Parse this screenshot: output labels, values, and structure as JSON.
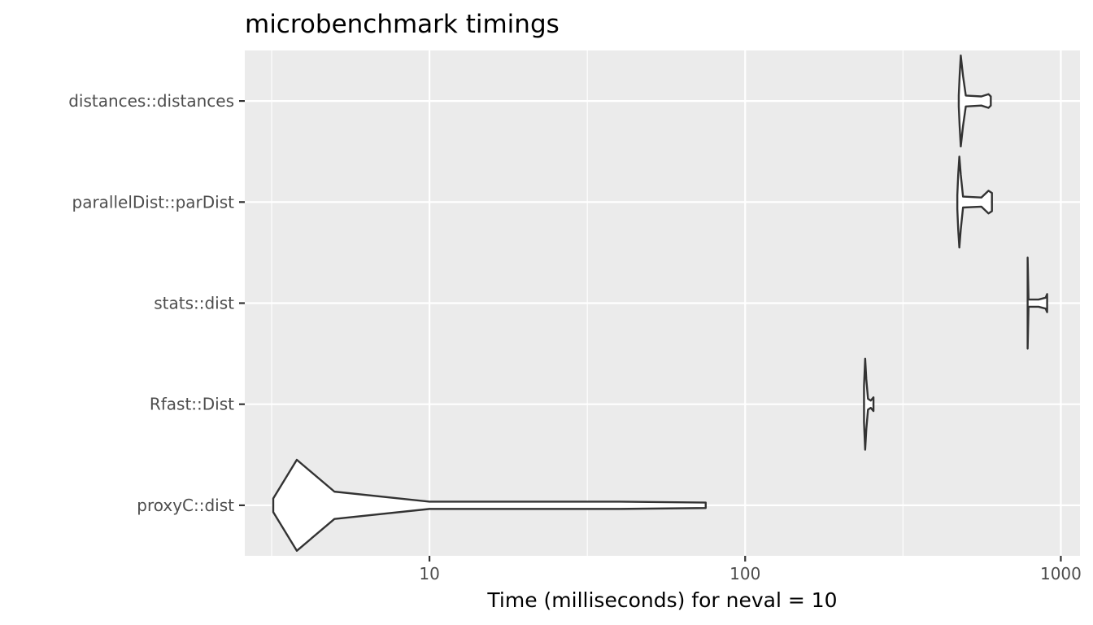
{
  "chart_data": {
    "type": "violin",
    "title": "microbenchmark timings",
    "xlabel": "Time (milliseconds) for neval = 10",
    "ylabel": "",
    "x_scale": "log10",
    "xlim": [
      2.6,
      1150
    ],
    "x_ticks": [
      10,
      100,
      1000
    ],
    "x_tick_labels": [
      "10",
      "100",
      "1000"
    ],
    "grid": true,
    "legend": "none",
    "categories": [
      "distances::distances",
      "parallelDist::parDist",
      "stats::dist",
      "Rfast::Dist",
      "proxyC::dist"
    ],
    "series": [
      {
        "category": "distances::distances",
        "min": 475,
        "max": 600,
        "profile": [
          [
            475,
            0.12
          ],
          [
            478,
            0.55
          ],
          [
            482,
            1.0
          ],
          [
            490,
            0.55
          ],
          [
            500,
            0.12
          ],
          [
            560,
            0.1
          ],
          [
            590,
            0.15
          ],
          [
            600,
            0.1
          ]
        ]
      },
      {
        "category": "parallelDist::parDist",
        "min": 470,
        "max": 605,
        "profile": [
          [
            470,
            0.15
          ],
          [
            473,
            0.6
          ],
          [
            477,
            1.0
          ],
          [
            482,
            0.6
          ],
          [
            490,
            0.12
          ],
          [
            560,
            0.1
          ],
          [
            590,
            0.25
          ],
          [
            605,
            0.2
          ]
        ]
      },
      {
        "category": "stats::dist",
        "min": 785,
        "max": 905,
        "profile": [
          [
            785,
            1.0
          ],
          [
            790,
            0.08
          ],
          [
            850,
            0.08
          ],
          [
            895,
            0.12
          ],
          [
            905,
            0.2
          ]
        ]
      },
      {
        "category": "Rfast::Dist",
        "min": 238,
        "max": 255,
        "profile": [
          [
            238,
            0.4
          ],
          [
            240,
            1.0
          ],
          [
            242,
            0.55
          ],
          [
            245,
            0.12
          ],
          [
            250,
            0.08
          ],
          [
            255,
            0.15
          ]
        ]
      },
      {
        "category": "proxyC::dist",
        "min": 3.2,
        "max": 75,
        "profile": [
          [
            3.2,
            0.15
          ],
          [
            3.8,
            1.0
          ],
          [
            5,
            0.3
          ],
          [
            10,
            0.08
          ],
          [
            40,
            0.08
          ],
          [
            75,
            0.06
          ]
        ]
      }
    ],
    "colors": {
      "panel_background": "#ebebeb",
      "grid_major": "#ffffff",
      "violin_outline": "#333333",
      "tick_label": "#4d4d4d",
      "tick_mark": "#333333"
    }
  }
}
